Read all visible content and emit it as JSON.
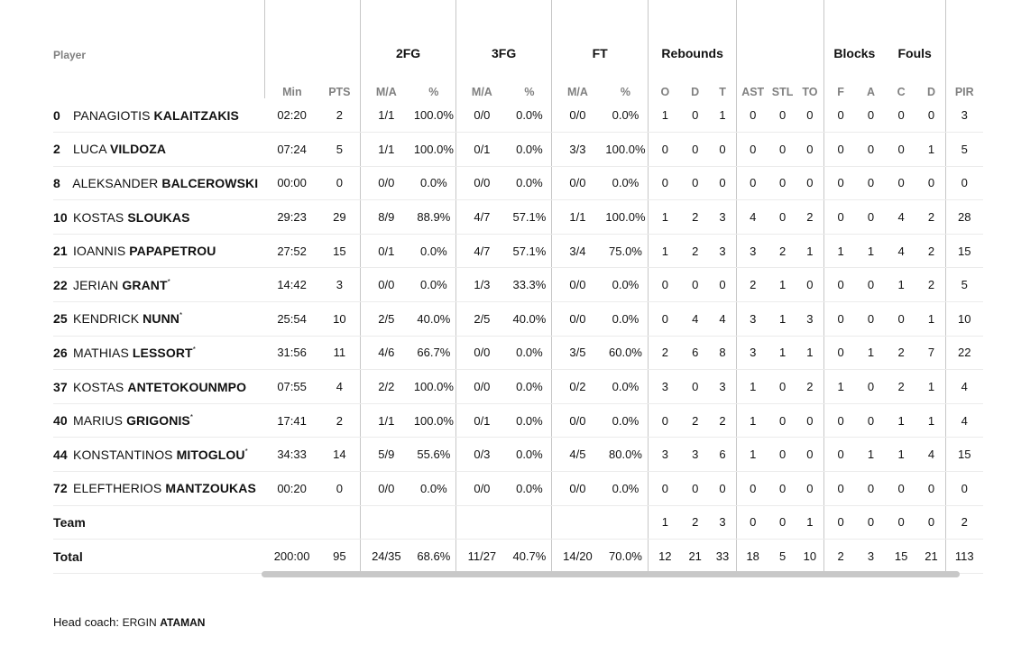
{
  "groups": {
    "fg2": "2FG",
    "fg3": "3FG",
    "ft": "FT",
    "rebounds": "Rebounds",
    "blocks": "Blocks",
    "fouls": "Fouls"
  },
  "headers": {
    "player": "Player",
    "min": "Min",
    "pts": "PTS",
    "fg2_ma": "M/A",
    "fg2_pct": "%",
    "fg3_ma": "M/A",
    "fg3_pct": "%",
    "ft_ma": "M/A",
    "ft_pct": "%",
    "o": "O",
    "d": "D",
    "t": "T",
    "ast": "AST",
    "stl": "STL",
    "to": "TO",
    "bf": "F",
    "ba": "A",
    "fc": "C",
    "fd": "D",
    "pir": "PIR"
  },
  "rows": [
    {
      "num": "0",
      "first": "PANAGIOTIS",
      "last": "KALAITZAKIS",
      "star": "",
      "min": "02:20",
      "pts": "2",
      "fg2_ma": "1/1",
      "fg2_pct": "100.0%",
      "fg3_ma": "0/0",
      "fg3_pct": "0.0%",
      "ft_ma": "0/0",
      "ft_pct": "0.0%",
      "o": "1",
      "d": "0",
      "t": "1",
      "ast": "0",
      "stl": "0",
      "to": "0",
      "bf": "0",
      "ba": "0",
      "fc": "0",
      "fd": "0",
      "pir": "3"
    },
    {
      "num": "2",
      "first": "LUCA",
      "last": "VILDOZA",
      "star": "",
      "min": "07:24",
      "pts": "5",
      "fg2_ma": "1/1",
      "fg2_pct": "100.0%",
      "fg3_ma": "0/1",
      "fg3_pct": "0.0%",
      "ft_ma": "3/3",
      "ft_pct": "100.0%",
      "o": "0",
      "d": "0",
      "t": "0",
      "ast": "0",
      "stl": "0",
      "to": "0",
      "bf": "0",
      "ba": "0",
      "fc": "0",
      "fd": "1",
      "pir": "5"
    },
    {
      "num": "8",
      "first": "ALEKSANDER",
      "last": "BALCEROWSKI",
      "star": "",
      "min": "00:00",
      "pts": "0",
      "fg2_ma": "0/0",
      "fg2_pct": "0.0%",
      "fg3_ma": "0/0",
      "fg3_pct": "0.0%",
      "ft_ma": "0/0",
      "ft_pct": "0.0%",
      "o": "0",
      "d": "0",
      "t": "0",
      "ast": "0",
      "stl": "0",
      "to": "0",
      "bf": "0",
      "ba": "0",
      "fc": "0",
      "fd": "0",
      "pir": "0"
    },
    {
      "num": "10",
      "first": "KOSTAS",
      "last": "SLOUKAS",
      "star": "",
      "min": "29:23",
      "pts": "29",
      "fg2_ma": "8/9",
      "fg2_pct": "88.9%",
      "fg3_ma": "4/7",
      "fg3_pct": "57.1%",
      "ft_ma": "1/1",
      "ft_pct": "100.0%",
      "o": "1",
      "d": "2",
      "t": "3",
      "ast": "4",
      "stl": "0",
      "to": "2",
      "bf": "0",
      "ba": "0",
      "fc": "4",
      "fd": "2",
      "pir": "28"
    },
    {
      "num": "21",
      "first": "IOANNIS",
      "last": "PAPAPETROU",
      "star": "",
      "min": "27:52",
      "pts": "15",
      "fg2_ma": "0/1",
      "fg2_pct": "0.0%",
      "fg3_ma": "4/7",
      "fg3_pct": "57.1%",
      "ft_ma": "3/4",
      "ft_pct": "75.0%",
      "o": "1",
      "d": "2",
      "t": "3",
      "ast": "3",
      "stl": "2",
      "to": "1",
      "bf": "1",
      "ba": "1",
      "fc": "4",
      "fd": "2",
      "pir": "15"
    },
    {
      "num": "22",
      "first": "JERIAN",
      "last": "GRANT",
      "star": "*",
      "min": "14:42",
      "pts": "3",
      "fg2_ma": "0/0",
      "fg2_pct": "0.0%",
      "fg3_ma": "1/3",
      "fg3_pct": "33.3%",
      "ft_ma": "0/0",
      "ft_pct": "0.0%",
      "o": "0",
      "d": "0",
      "t": "0",
      "ast": "2",
      "stl": "1",
      "to": "0",
      "bf": "0",
      "ba": "0",
      "fc": "1",
      "fd": "2",
      "pir": "5"
    },
    {
      "num": "25",
      "first": "KENDRICK",
      "last": "NUNN",
      "star": "*",
      "min": "25:54",
      "pts": "10",
      "fg2_ma": "2/5",
      "fg2_pct": "40.0%",
      "fg3_ma": "2/5",
      "fg3_pct": "40.0%",
      "ft_ma": "0/0",
      "ft_pct": "0.0%",
      "o": "0",
      "d": "4",
      "t": "4",
      "ast": "3",
      "stl": "1",
      "to": "3",
      "bf": "0",
      "ba": "0",
      "fc": "0",
      "fd": "1",
      "pir": "10"
    },
    {
      "num": "26",
      "first": "MATHIAS",
      "last": "LESSORT",
      "star": "*",
      "min": "31:56",
      "pts": "11",
      "fg2_ma": "4/6",
      "fg2_pct": "66.7%",
      "fg3_ma": "0/0",
      "fg3_pct": "0.0%",
      "ft_ma": "3/5",
      "ft_pct": "60.0%",
      "o": "2",
      "d": "6",
      "t": "8",
      "ast": "3",
      "stl": "1",
      "to": "1",
      "bf": "0",
      "ba": "1",
      "fc": "2",
      "fd": "7",
      "pir": "22"
    },
    {
      "num": "37",
      "first": "KOSTAS",
      "last": "ANTETOKOUNMPO",
      "star": "",
      "min": "07:55",
      "pts": "4",
      "fg2_ma": "2/2",
      "fg2_pct": "100.0%",
      "fg3_ma": "0/0",
      "fg3_pct": "0.0%",
      "ft_ma": "0/2",
      "ft_pct": "0.0%",
      "o": "3",
      "d": "0",
      "t": "3",
      "ast": "1",
      "stl": "0",
      "to": "2",
      "bf": "1",
      "ba": "0",
      "fc": "2",
      "fd": "1",
      "pir": "4"
    },
    {
      "num": "40",
      "first": "MARIUS",
      "last": "GRIGONIS",
      "star": "*",
      "min": "17:41",
      "pts": "2",
      "fg2_ma": "1/1",
      "fg2_pct": "100.0%",
      "fg3_ma": "0/1",
      "fg3_pct": "0.0%",
      "ft_ma": "0/0",
      "ft_pct": "0.0%",
      "o": "0",
      "d": "2",
      "t": "2",
      "ast": "1",
      "stl": "0",
      "to": "0",
      "bf": "0",
      "ba": "0",
      "fc": "1",
      "fd": "1",
      "pir": "4"
    },
    {
      "num": "44",
      "first": "KONSTANTINOS",
      "last": "MITOGLOU",
      "star": "*",
      "min": "34:33",
      "pts": "14",
      "fg2_ma": "5/9",
      "fg2_pct": "55.6%",
      "fg3_ma": "0/3",
      "fg3_pct": "0.0%",
      "ft_ma": "4/5",
      "ft_pct": "80.0%",
      "o": "3",
      "d": "3",
      "t": "6",
      "ast": "1",
      "stl": "0",
      "to": "0",
      "bf": "0",
      "ba": "1",
      "fc": "1",
      "fd": "4",
      "pir": "15"
    },
    {
      "num": "72",
      "first": "ELEFTHERIOS",
      "last": "MANTZOUKAS",
      "star": "",
      "min": "00:20",
      "pts": "0",
      "fg2_ma": "0/0",
      "fg2_pct": "0.0%",
      "fg3_ma": "0/0",
      "fg3_pct": "0.0%",
      "ft_ma": "0/0",
      "ft_pct": "0.0%",
      "o": "0",
      "d": "0",
      "t": "0",
      "ast": "0",
      "stl": "0",
      "to": "0",
      "bf": "0",
      "ba": "0",
      "fc": "0",
      "fd": "0",
      "pir": "0"
    }
  ],
  "team": {
    "label": "Team",
    "o": "1",
    "d": "2",
    "t": "3",
    "ast": "0",
    "stl": "0",
    "to": "1",
    "bf": "0",
    "ba": "0",
    "fc": "0",
    "fd": "0",
    "pir": "2"
  },
  "total": {
    "label": "Total",
    "min": "200:00",
    "pts": "95",
    "fg2_ma": "24/35",
    "fg2_pct": "68.6%",
    "fg3_ma": "11/27",
    "fg3_pct": "40.7%",
    "ft_ma": "14/20",
    "ft_pct": "70.0%",
    "o": "12",
    "d": "21",
    "t": "33",
    "ast": "18",
    "stl": "5",
    "to": "10",
    "bf": "2",
    "ba": "3",
    "fc": "15",
    "fd": "21",
    "pir": "113"
  },
  "coach": {
    "label": "Head coach:",
    "first": "ERGIN",
    "last": "ATAMAN"
  }
}
